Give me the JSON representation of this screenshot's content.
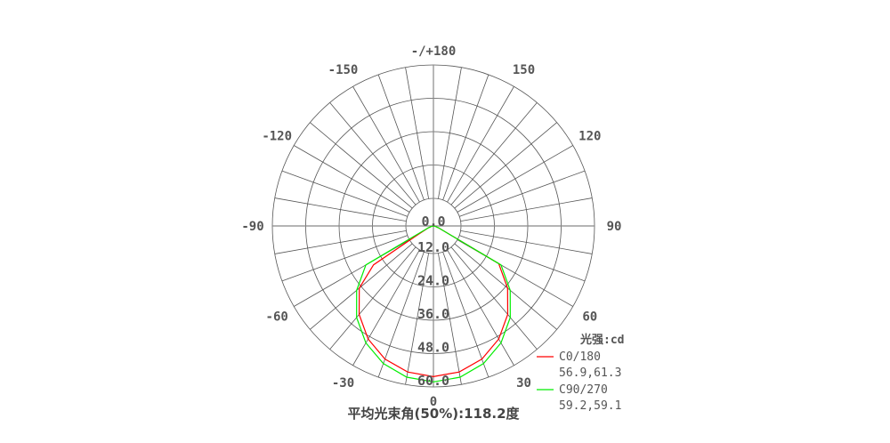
{
  "chart_data": {
    "type": "polar",
    "unit_label": "光强:cd",
    "angle_labels": [
      {
        "angle": 180,
        "label": "-/+180"
      },
      {
        "angle": 150,
        "label": "150"
      },
      {
        "angle": -150,
        "label": "-150"
      },
      {
        "angle": 120,
        "label": "120"
      },
      {
        "angle": -120,
        "label": "-120"
      },
      {
        "angle": 90,
        "label": "90"
      },
      {
        "angle": -90,
        "label": "-90"
      },
      {
        "angle": 60,
        "label": "60"
      },
      {
        "angle": -60,
        "label": "-60"
      },
      {
        "angle": 30,
        "label": "30"
      },
      {
        "angle": -30,
        "label": "-30"
      },
      {
        "angle": 0,
        "label": "0"
      }
    ],
    "radial_ticks": [
      "0.0",
      "12.0",
      "24.0",
      "36.0",
      "48.0",
      "60.0"
    ],
    "radial_range": [
      0,
      60
    ],
    "angle_grid_step": 10,
    "series": [
      {
        "name": "C0/180",
        "summary": "56.9,61.3",
        "color": "#ff0000",
        "angles": [
          -90,
          -80,
          -70,
          -60,
          -57,
          -50,
          -40,
          -30,
          -20,
          -10,
          0,
          10,
          20,
          30,
          40,
          50,
          60,
          70,
          80,
          90
        ],
        "values": [
          0,
          0.5,
          2,
          8,
          27,
          36.6,
          43.7,
          49.4,
          53.6,
          56.1,
          57,
          56.1,
          53.6,
          49.4,
          43.7,
          36.6,
          28.5,
          2,
          0.5,
          0
        ]
      },
      {
        "name": "C90/270",
        "summary": "59.2,59.1",
        "color": "#00ee00",
        "angles": [
          -90,
          -80,
          -70,
          -62,
          -60,
          -50,
          -40,
          -30,
          -20,
          -10,
          0,
          10,
          20,
          30,
          40,
          50,
          60,
          70,
          80,
          90
        ],
        "values": [
          0,
          0.5,
          2,
          8,
          29.5,
          37.9,
          45.2,
          51.1,
          55.4,
          58.1,
          59,
          58.1,
          55.4,
          51.1,
          45.2,
          37.9,
          29.5,
          2,
          0.5,
          0
        ]
      }
    ],
    "footer": "平均光束角(50%):118.2度"
  }
}
